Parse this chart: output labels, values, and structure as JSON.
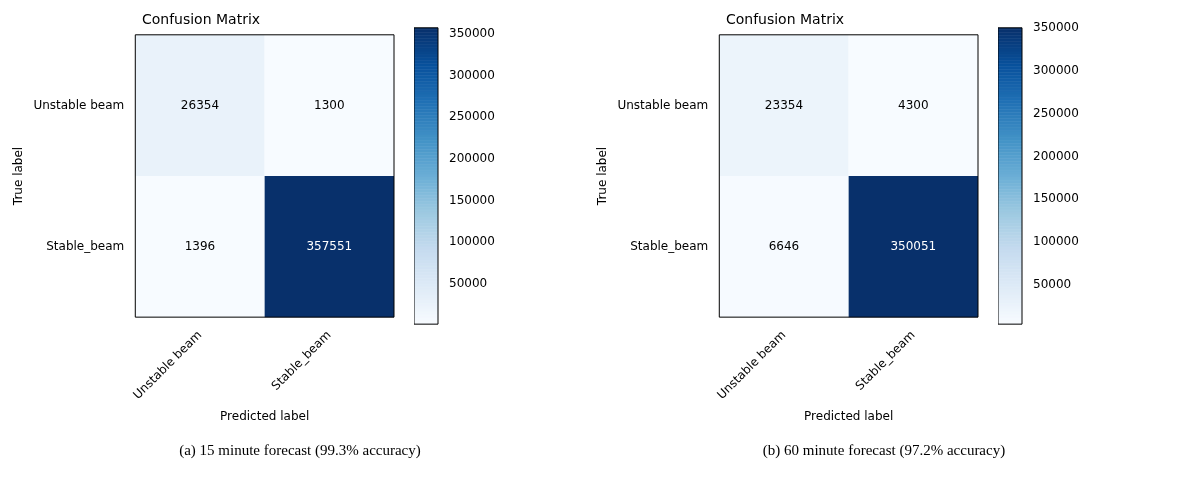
{
  "chart_data": [
    {
      "type": "heatmap",
      "title": "Confusion Matrix",
      "xlabel": "Predicted label",
      "ylabel": "True label",
      "categories": [
        "Unstable beam",
        "Stable_beam"
      ],
      "y_categories": [
        "Unstable beam",
        "Stable_beam"
      ],
      "cells": [
        [
          26354,
          1300
        ],
        [
          1396,
          357551
        ]
      ],
      "clim": [
        1300,
        357551
      ],
      "cticks": [
        50000,
        100000,
        150000,
        200000,
        250000,
        300000,
        350000
      ],
      "data_labels": true,
      "annotations": [
        "(a) 15 minute forecast (99.3% accuracy)"
      ]
    },
    {
      "type": "heatmap",
      "title": "Confusion Matrix",
      "xlabel": "Predicted label",
      "ylabel": "True label",
      "categories": [
        "Unstable beam",
        "Stable_beam"
      ],
      "y_categories": [
        "Unstable beam",
        "Stable_beam"
      ],
      "cells": [
        [
          23354,
          4300
        ],
        [
          6646,
          350051
        ]
      ],
      "clim": [
        4300,
        350051
      ],
      "cticks": [
        50000,
        100000,
        150000,
        200000,
        250000,
        300000,
        350000
      ],
      "data_labels": true,
      "annotations": [
        "(b) 60 minute forecast (97.2% accuracy)"
      ]
    }
  ]
}
